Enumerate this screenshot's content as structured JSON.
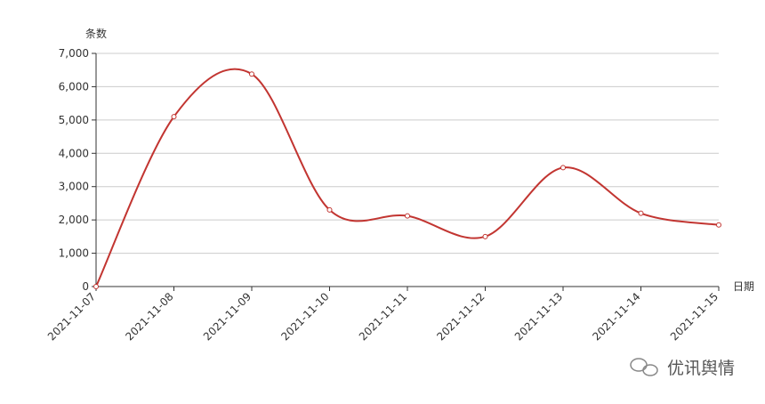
{
  "chart_data": {
    "type": "line",
    "y_axis_name": "条数",
    "x_axis_name": "日期",
    "categories": [
      "2021-11-07",
      "2021-11-08",
      "2021-11-09",
      "2021-11-10",
      "2021-11-11",
      "2021-11-12",
      "2021-11-13",
      "2021-11-14",
      "2021-11-15"
    ],
    "series": [
      {
        "color": "#c23531",
        "values": [
          0,
          5100,
          6380,
          2300,
          2120,
          1500,
          3570,
          2200,
          1850
        ]
      }
    ],
    "ylim": [
      0,
      7000
    ],
    "yticks": [
      0,
      {
        "value": 1000,
        "label": "1,000"
      },
      {
        "value": 2000,
        "label": "2,000"
      },
      {
        "value": 3000,
        "label": "3,000"
      },
      {
        "value": 4000,
        "label": "4,000"
      },
      {
        "value": 5000,
        "label": "5,000"
      },
      {
        "value": 6000,
        "label": "6,000"
      },
      {
        "value": 7000,
        "label": "7,000"
      }
    ],
    "grid": true,
    "smooth": true
  },
  "watermark": "优讯舆情"
}
